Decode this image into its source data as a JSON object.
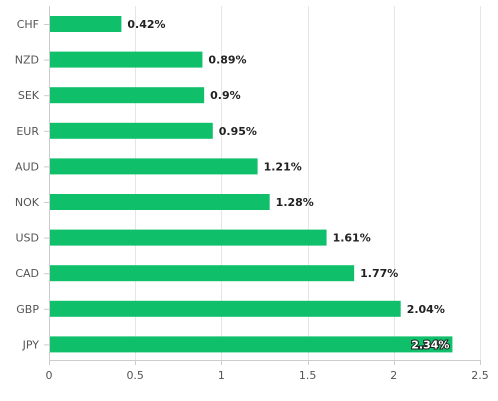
{
  "chart_data": {
    "type": "bar",
    "orientation": "horizontal",
    "categories": [
      "CHF",
      "NZD",
      "SEK",
      "EUR",
      "AUD",
      "NOK",
      "USD",
      "CAD",
      "GBP",
      "JPY"
    ],
    "values": [
      0.42,
      0.89,
      0.9,
      0.95,
      1.21,
      1.28,
      1.61,
      1.77,
      2.04,
      2.34
    ],
    "value_labels": [
      "0.42%",
      "0.89%",
      "0.9%",
      "0.95%",
      "1.21%",
      "1.28%",
      "1.61%",
      "1.77%",
      "2.04%",
      "2.34%"
    ],
    "x_ticks": [
      0,
      0.5,
      1,
      1.5,
      2,
      2.5
    ],
    "x_tick_labels": [
      "0",
      "0.5",
      "1",
      "1.5",
      "2",
      "2.5"
    ],
    "xlim": [
      0,
      2.5
    ],
    "grid": "vertical",
    "bar_color": "#0fbf6a",
    "grid_color": "#e6e6e6",
    "axis_color": "#cccccc",
    "title": "",
    "xlabel": "",
    "ylabel": ""
  }
}
